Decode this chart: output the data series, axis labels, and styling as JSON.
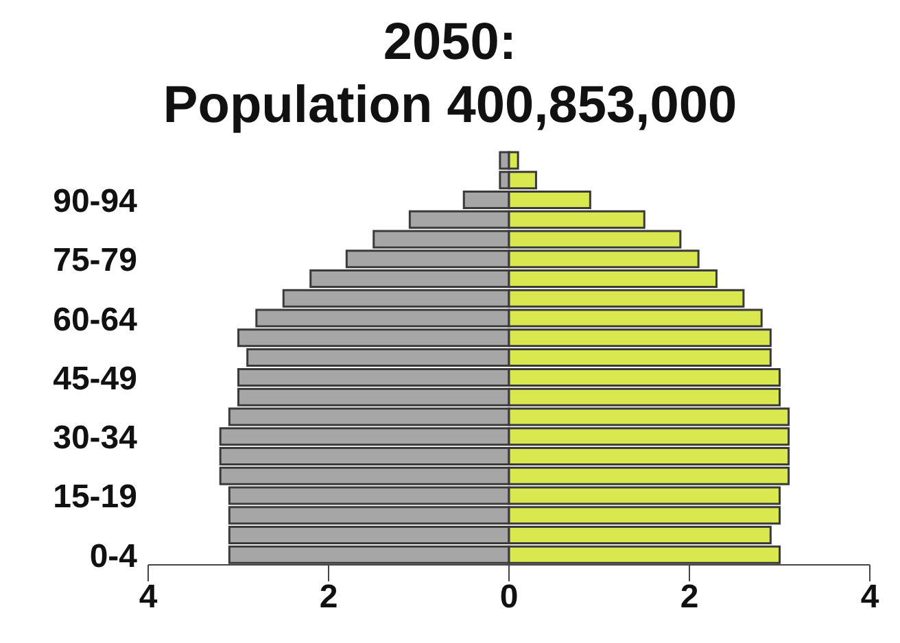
{
  "chart_data": {
    "type": "bar",
    "orientation": "horizontal",
    "stacked": true,
    "title": "2050:",
    "subtitle": "Population 400,853,000",
    "categories": [
      null,
      null,
      "90-94",
      null,
      null,
      "75-79",
      null,
      null,
      "60-64",
      null,
      null,
      "45-49",
      null,
      null,
      "30-34",
      null,
      null,
      "15-19",
      null,
      null,
      "0-4"
    ],
    "series": [
      {
        "color": "#a6a6a6",
        "values": [
          -0.1,
          -0.1,
          -0.5,
          -1.1,
          -1.5,
          -1.8,
          -2.2,
          -2.5,
          -2.8,
          -3.0,
          -2.9,
          -3.0,
          -3.0,
          -3.1,
          -3.2,
          -3.2,
          -3.2,
          -3.1,
          -3.1,
          -3.1,
          -3.1
        ]
      },
      {
        "color": "#d9e84f",
        "values": [
          0.1,
          0.3,
          0.9,
          1.5,
          1.9,
          2.1,
          2.3,
          2.6,
          2.8,
          2.9,
          2.9,
          3.0,
          3.0,
          3.1,
          3.1,
          3.1,
          3.1,
          3.0,
          3.0,
          2.9,
          3.0
        ]
      }
    ],
    "xlim": [
      -4,
      4
    ],
    "xticks": [
      {
        "value": -4,
        "label": "4"
      },
      {
        "value": -2,
        "label": "2"
      },
      0,
      2,
      4
    ],
    "grid": false,
    "legend": false
  }
}
